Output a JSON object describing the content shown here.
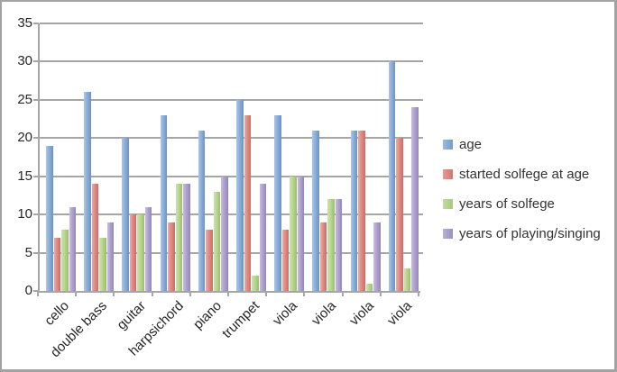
{
  "chart_data": {
    "type": "bar",
    "title": "",
    "xlabel": "",
    "ylabel": "",
    "categories": [
      "cello",
      "double bass",
      "guitar",
      "harpsichord",
      "piano",
      "trumpet",
      "viola",
      "viola",
      "viola",
      "viola"
    ],
    "series": [
      {
        "name": "age",
        "color": "#7ba3d6",
        "values": [
          19,
          26,
          20,
          23,
          21,
          25,
          23,
          21,
          21,
          30
        ]
      },
      {
        "name": "started solfege at age",
        "color": "#dd7a72",
        "values": [
          7,
          14,
          10,
          9,
          8,
          23,
          8,
          9,
          21,
          20
        ]
      },
      {
        "name": "years of solfege",
        "color": "#aed17f",
        "values": [
          8,
          7,
          10,
          14,
          13,
          2,
          15,
          12,
          1,
          3
        ]
      },
      {
        "name": "years of playing/singing",
        "color": "#a495cb",
        "values": [
          11,
          9,
          11,
          14,
          15,
          14,
          15,
          12,
          9,
          24
        ]
      }
    ],
    "ylim": [
      0,
      35
    ],
    "yticks": [
      0,
      5,
      10,
      15,
      20,
      25,
      30,
      35
    ],
    "grid": true,
    "legend_position": "right"
  },
  "colors": {
    "gridline": "#a6a6a6",
    "axis": "#a6a6a6",
    "frame_border": "#a3a3a3",
    "text": "#262626",
    "background": "#ffffff"
  }
}
